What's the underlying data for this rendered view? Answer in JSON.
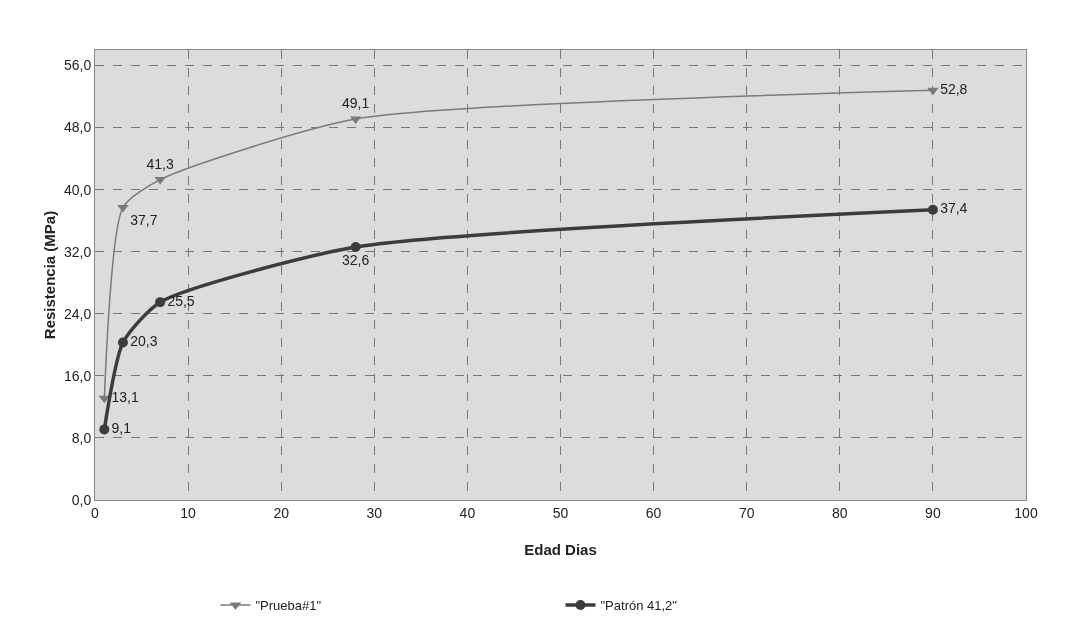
{
  "chart_data": {
    "type": "line",
    "xlabel": "Edad Dias",
    "ylabel": "Resistencia (MPa)",
    "x": [
      1,
      3,
      7,
      28,
      90
    ],
    "series": [
      {
        "name": "\"Prueba#1\"",
        "color": "#7a7a7a",
        "marker": "triangle",
        "values": [
          13.1,
          37.7,
          41.3,
          49.1,
          52.8
        ],
        "value_labels": [
          "13,1",
          "37,7",
          "41,3",
          "49,1",
          "52,8"
        ]
      },
      {
        "name": "\"Patrón 41,2\"",
        "color": "#3c3c3c",
        "marker": "circle",
        "values": [
          9.1,
          20.3,
          25.5,
          32.6,
          37.4
        ],
        "value_labels": [
          "9,1",
          "20,3",
          "25,5",
          "32,6",
          "37,4"
        ]
      }
    ],
    "xlim": [
      0,
      100
    ],
    "xticks": [
      0,
      10,
      20,
      30,
      40,
      50,
      60,
      70,
      80,
      90,
      100
    ],
    "ylim": [
      0,
      58
    ],
    "yticks": [
      {
        "value": 0,
        "label": "0,0"
      },
      {
        "value": 8,
        "label": "8,0"
      },
      {
        "value": 16,
        "label": "16,0"
      },
      {
        "value": 24,
        "label": "24,0"
      },
      {
        "value": 32,
        "label": "32,0"
      },
      {
        "value": 40,
        "label": "40,0"
      },
      {
        "value": 48,
        "label": "48,0"
      },
      {
        "value": 56,
        "label": "56,0"
      }
    ],
    "grid": true,
    "legend": "bottom",
    "line_style": "solid"
  }
}
